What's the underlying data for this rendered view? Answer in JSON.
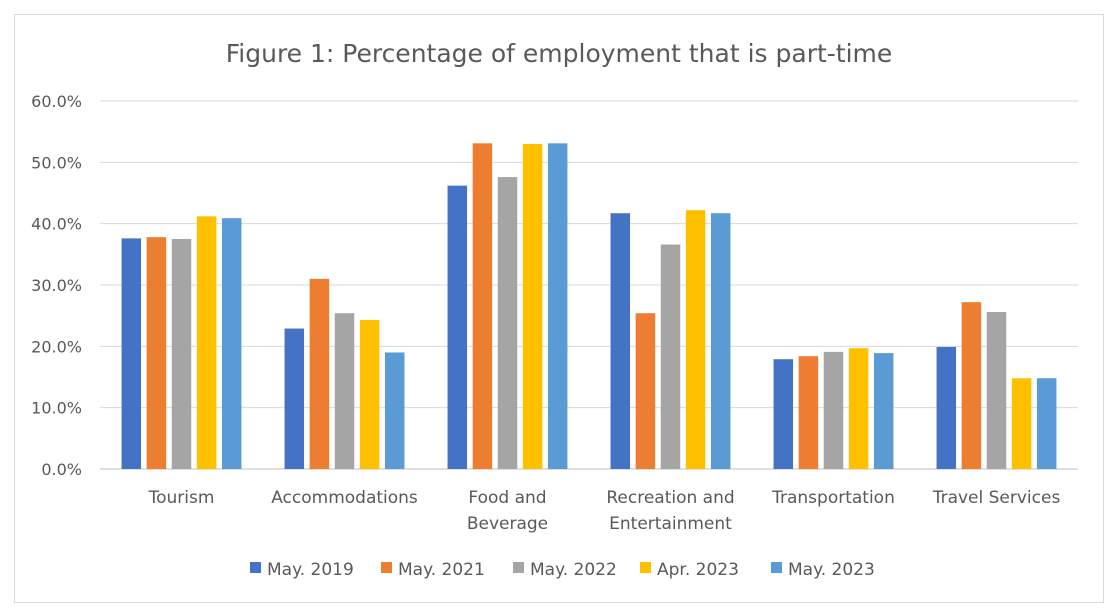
{
  "chart_data": {
    "type": "bar",
    "title": "Figure 1: Percentage of employment that is part-time",
    "xlabel": "",
    "ylabel": "",
    "ylim": [
      0,
      60
    ],
    "yticks": [
      "0.0%",
      "10.0%",
      "20.0%",
      "30.0%",
      "40.0%",
      "50.0%",
      "60.0%"
    ],
    "grid": true,
    "legend_position": "bottom",
    "categories": [
      [
        "Tourism"
      ],
      [
        "Accommodations"
      ],
      [
        "Food and",
        "Beverage"
      ],
      [
        "Recreation and",
        "Entertainment"
      ],
      [
        "Transportation"
      ],
      [
        "Travel Services"
      ]
    ],
    "series": [
      {
        "name": "May. 2019",
        "color": "#4472c4",
        "values": [
          37.6,
          22.9,
          46.2,
          41.7,
          17.9,
          19.9
        ]
      },
      {
        "name": "May. 2021",
        "color": "#ed7d31",
        "values": [
          37.8,
          31.0,
          53.1,
          25.4,
          18.4,
          27.2
        ]
      },
      {
        "name": "May. 2022",
        "color": "#a5a5a5",
        "values": [
          37.5,
          25.4,
          47.6,
          36.6,
          19.1,
          25.6
        ]
      },
      {
        "name": "Apr. 2023",
        "color": "#ffc000",
        "values": [
          41.2,
          24.3,
          53.0,
          42.2,
          19.7,
          14.8
        ]
      },
      {
        "name": "May. 2023",
        "color": "#5b9bd5",
        "values": [
          40.9,
          19.0,
          53.1,
          41.7,
          18.9,
          14.8
        ]
      }
    ]
  }
}
